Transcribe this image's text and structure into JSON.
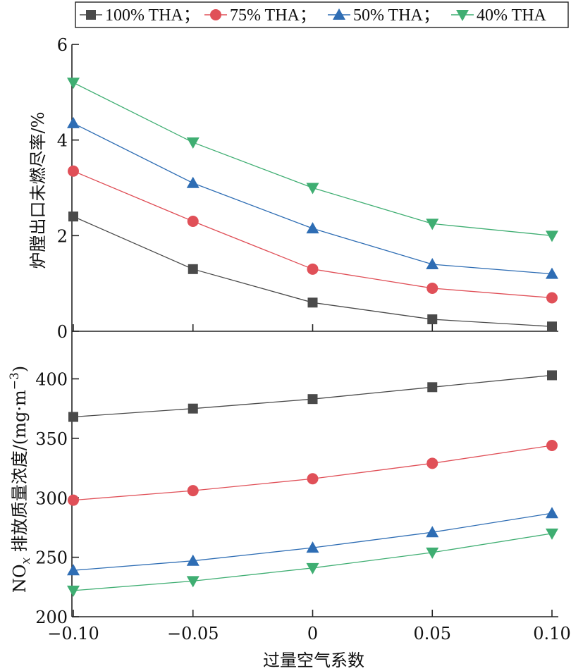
{
  "chart_data": [
    {
      "type": "line",
      "panel": "top",
      "x": [
        -0.1,
        -0.05,
        0,
        0.05,
        0.1
      ],
      "ylabel": "炉膛出口未燃尽率/%",
      "ylim": [
        0,
        6
      ],
      "yticks": [
        "0",
        "2",
        "4",
        "6"
      ],
      "grid": false,
      "series": [
        {
          "name": "100% THA；",
          "marker": "square",
          "color": "#4a4a4a",
          "values": [
            2.4,
            1.3,
            0.6,
            0.25,
            0.1
          ]
        },
        {
          "name": "75% THA；",
          "marker": "circle",
          "color": "#e05058",
          "values": [
            3.35,
            2.3,
            1.3,
            0.9,
            0.7
          ]
        },
        {
          "name": "50% THA；",
          "marker": "triangle-up",
          "color": "#2e6db4",
          "values": [
            4.35,
            3.1,
            2.15,
            1.4,
            1.2
          ]
        },
        {
          "name": "40% THA",
          "marker": "triangle-down",
          "color": "#3fae72",
          "values": [
            5.2,
            3.95,
            3.0,
            2.25,
            2.0
          ]
        }
      ]
    },
    {
      "type": "line",
      "panel": "bottom",
      "x": [
        -0.1,
        -0.05,
        0,
        0.05,
        0.1
      ],
      "xlabel": "过量空气系数",
      "xticks": [
        "−0.10",
        "−0.05",
        "0",
        "0.05",
        "0.10"
      ],
      "ylabel_parts": [
        "NO",
        "x",
        " 排放质量浓度/(mg·m",
        "−3",
        ")"
      ],
      "ylim": [
        200,
        440
      ],
      "yticks": [
        "200",
        "250",
        "300",
        "350",
        "400"
      ],
      "grid": false,
      "series": [
        {
          "name": "100% THA；",
          "marker": "square",
          "color": "#4a4a4a",
          "values": [
            368,
            375,
            383,
            393,
            403
          ]
        },
        {
          "name": "75% THA；",
          "marker": "circle",
          "color": "#e05058",
          "values": [
            298,
            306,
            316,
            329,
            344
          ]
        },
        {
          "name": "50% THA；",
          "marker": "triangle-up",
          "color": "#2e6db4",
          "values": [
            239,
            247,
            258,
            271,
            287
          ]
        },
        {
          "name": "40% THA",
          "marker": "triangle-down",
          "color": "#3fae72",
          "values": [
            222,
            230,
            241,
            254,
            270
          ]
        }
      ]
    }
  ],
  "legend": {
    "placement": "top",
    "entries": [
      "100% THA；",
      "75% THA；",
      "50% THA；",
      "40% THA"
    ]
  }
}
